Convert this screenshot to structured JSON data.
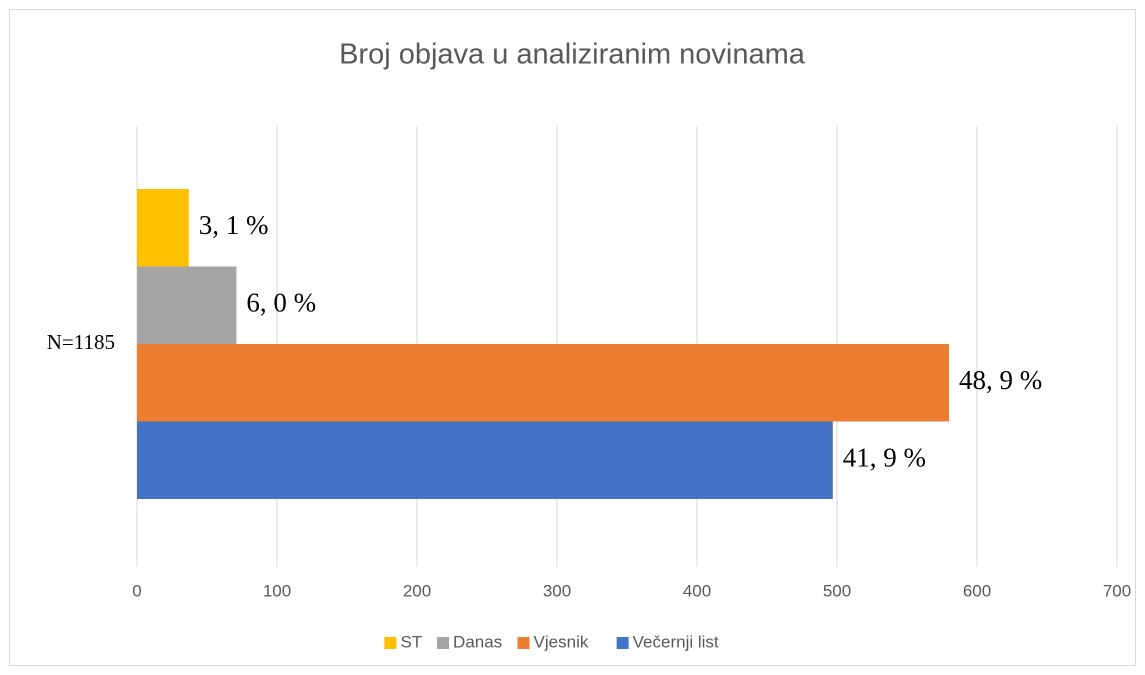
{
  "chart_data": {
    "type": "bar",
    "orientation": "horizontal",
    "title": "Broj objava u analiziranim novinama",
    "categories": [
      "N=1185"
    ],
    "series": [
      {
        "name": "ST",
        "color": "#ffc000",
        "values": [
          37
        ],
        "value_labels": [
          "3, 1 %"
        ]
      },
      {
        "name": "Danas",
        "color": "#a5a5a5",
        "values": [
          71
        ],
        "value_labels": [
          "6, 0 %"
        ]
      },
      {
        "name": "Vjesnik",
        "color": "#ed7d31",
        "values": [
          580
        ],
        "value_labels": [
          "48, 9 %"
        ]
      },
      {
        "name": "Večernji list",
        "color": "#4472c4",
        "values": [
          497
        ],
        "value_labels": [
          "41, 9 %"
        ]
      }
    ],
    "xlim": [
      0,
      700
    ],
    "xticks": [
      0,
      100,
      200,
      300,
      400,
      500,
      600,
      700
    ],
    "grid": true,
    "legend": "bottom"
  }
}
